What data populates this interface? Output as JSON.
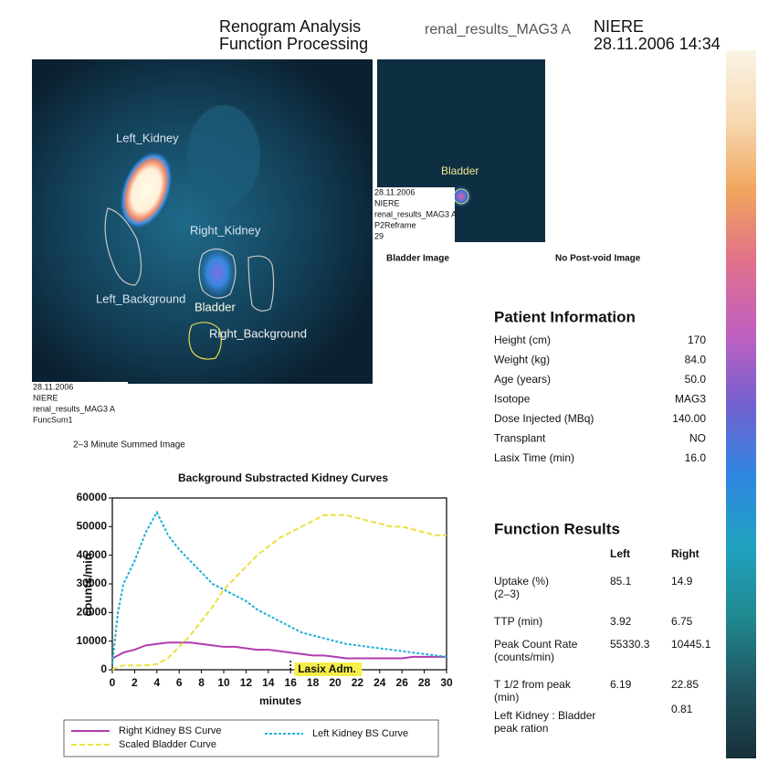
{
  "header": {
    "title_lines": [
      "Renogram Analysis",
      "Function Processing"
    ],
    "study": "renal_results_MAG3 A",
    "patient": "NIERE",
    "datetime": "28.11.2006 14:34"
  },
  "summed_image": {
    "labels": [
      "Left_Kidney",
      "Right_Kidney",
      "Left_Background",
      "Bladder",
      "Right_Background"
    ],
    "info": [
      "28.11.2006",
      "NIERE",
      "renal_results_MAG3 A",
      "FuncSum1"
    ],
    "caption": "2–3 Minute Summed Image"
  },
  "bladder_image": {
    "label": "Bladder",
    "info": [
      "28.11.2006",
      "NIERE",
      "renal_results_MAG3 A",
      "P2Reframe",
      "29"
    ],
    "caption": "Bladder Image"
  },
  "postvoid_caption": "No Post-void Image",
  "patient_info": {
    "title": "Patient Information",
    "rows": [
      [
        "Height (cm)",
        "170"
      ],
      [
        "Weight (kg)",
        "84.0"
      ],
      [
        "Age (years)",
        "50.0"
      ],
      [
        "Isotope",
        "MAG3"
      ],
      [
        "Dose Injected (MBq)",
        "140.00"
      ],
      [
        "Transplant",
        "NO"
      ],
      [
        "Lasix Time (min)",
        "16.0"
      ]
    ]
  },
  "function_results": {
    "title": "Function Results",
    "columns": [
      "Left",
      "Right"
    ],
    "rows": [
      {
        "label": [
          "Uptake (%)",
          "(2–3)"
        ],
        "left": "85.1",
        "right": "14.9"
      },
      {
        "label": [
          "TTP (min)"
        ],
        "left": "3.92",
        "right": "6.75"
      },
      {
        "label": [
          "Peak Count Rate",
          "(counts/min)"
        ],
        "left": "55330.3",
        "right": "10445.1"
      },
      {
        "label": [
          "T 1/2 from peak",
          "(min)"
        ],
        "left": "6.19",
        "right": "22.85"
      },
      {
        "label": [
          "Left Kidney : Bladder",
          "peak ration"
        ],
        "right": "0.81"
      }
    ]
  },
  "chart_data": {
    "type": "line",
    "title": "Background Substracted Kidney Curves",
    "x_label": "minutes",
    "y_label": "counts/min",
    "x": [
      0,
      0.5,
      1,
      2,
      3,
      4,
      5,
      6,
      7,
      8,
      9,
      10,
      11,
      12,
      13,
      14,
      15,
      16,
      17,
      18,
      19,
      20,
      21,
      22,
      23,
      24,
      25,
      26,
      27,
      28,
      29,
      30
    ],
    "series": [
      {
        "name": "Right Kidney BS Curve",
        "color": "#b03cb0",
        "values": [
          4000,
          5000,
          6000,
          7000,
          8500,
          9000,
          9500,
          9500,
          9500,
          9000,
          8500,
          8000,
          8000,
          7500,
          7000,
          7000,
          6500,
          6000,
          5500,
          5000,
          5000,
          4500,
          4000,
          4000,
          4000,
          4000,
          4000,
          4000,
          4500,
          4500,
          4500,
          4500
        ]
      },
      {
        "name": "Scaled Bladder Curve",
        "color": "#ece040",
        "values": [
          0,
          1000,
          1500,
          1500,
          1500,
          2000,
          4000,
          8000,
          12000,
          17000,
          22000,
          28000,
          32000,
          36000,
          40000,
          43000,
          46000,
          48000,
          50000,
          52000,
          54000,
          54000,
          54000,
          53000,
          52000,
          51000,
          50000,
          50000,
          49000,
          48000,
          47000,
          47000
        ]
      },
      {
        "name": "Left Kidney BS Curve",
        "color": "#1fb0d8",
        "values": [
          2000,
          20000,
          30000,
          38000,
          48000,
          55000,
          47000,
          42000,
          38000,
          34000,
          30000,
          28000,
          26000,
          24000,
          21000,
          19000,
          17000,
          15000,
          13000,
          12000,
          11000,
          10000,
          9000,
          8500,
          8000,
          7500,
          7000,
          6500,
          6000,
          5500,
          5000,
          4500
        ]
      }
    ],
    "annotation": {
      "text": "Lasix Adm.",
      "x": 16
    },
    "xlim": [
      0,
      30
    ],
    "xticks": [
      0,
      2,
      4,
      6,
      8,
      10,
      12,
      14,
      16,
      18,
      20,
      22,
      24,
      26,
      28,
      30
    ],
    "ylim": [
      0,
      60000
    ],
    "yticks": [
      0,
      10000,
      20000,
      30000,
      40000,
      50000,
      60000
    ]
  }
}
